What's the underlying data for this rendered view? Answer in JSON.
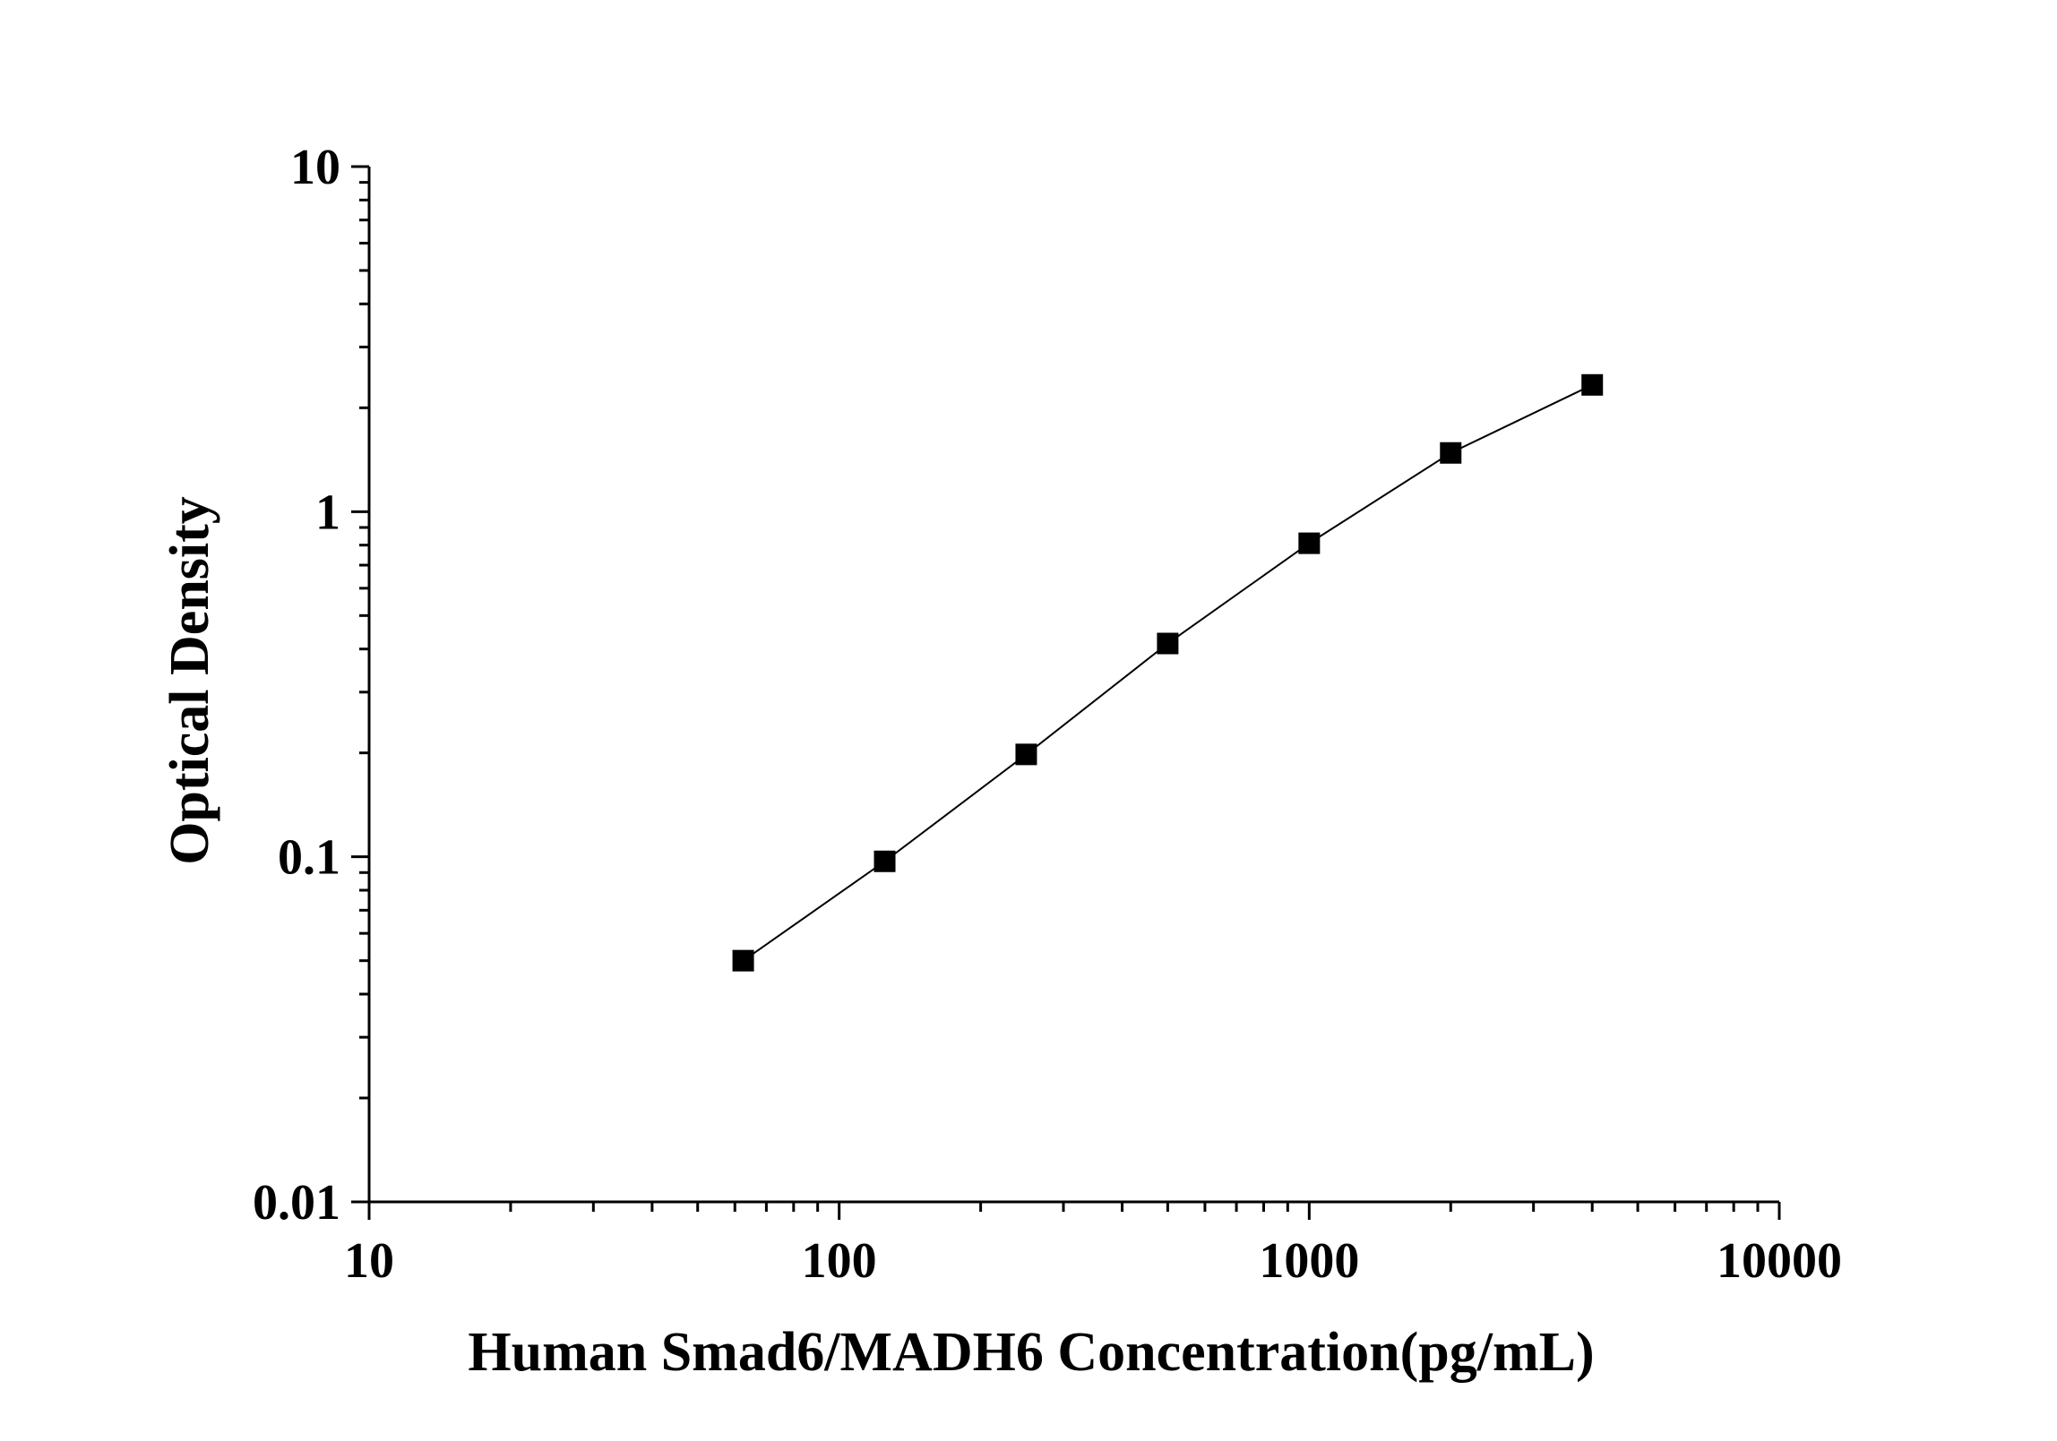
{
  "chart_data": {
    "type": "line",
    "title": "",
    "xlabel": "Human Smad6/MADH6 Concentration(pg/mL)",
    "ylabel": "Optical Density",
    "xscale": "log",
    "yscale": "log",
    "xlim": [
      10,
      10000
    ],
    "ylim": [
      0.01,
      10
    ],
    "x_ticks": [
      "10",
      "100",
      "1000",
      "10000"
    ],
    "y_ticks": [
      "0.01",
      "0.1",
      "1",
      "10"
    ],
    "grid": false,
    "legend": "none",
    "marker": "square",
    "color": "#000000",
    "series": [
      {
        "x": [
          62.5,
          125,
          250,
          500,
          1000,
          2000,
          4000
        ],
        "y": [
          0.05,
          0.097,
          0.198,
          0.415,
          0.81,
          1.48,
          2.33
        ]
      }
    ]
  }
}
